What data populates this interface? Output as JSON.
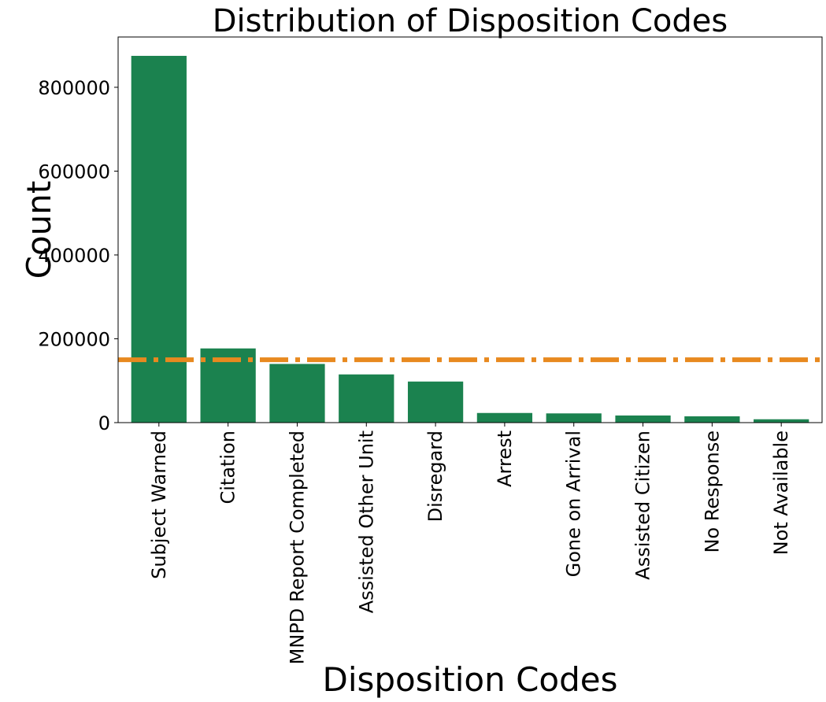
{
  "chart_data": {
    "type": "bar",
    "title": "Distribution of Disposition Codes",
    "xlabel": "Disposition Codes",
    "ylabel": "Count",
    "categories": [
      "Subject Warned",
      "Citation",
      "MNPD Report Completed",
      "Assisted Other Unit",
      "Disregard",
      "Arrest",
      "Gone on Arrival",
      "Assisted Citizen",
      "No Response",
      "Not Available"
    ],
    "values": [
      875000,
      177000,
      140000,
      115000,
      98000,
      23000,
      22000,
      17000,
      15000,
      8000
    ],
    "ylim": [
      0,
      920000
    ],
    "yticks": [
      0,
      200000,
      400000,
      600000,
      800000
    ],
    "reference_line": {
      "value": 150000,
      "style": "dash-dot"
    },
    "grid": false,
    "colors": {
      "bar": "#1b824f",
      "reference_line": "#e8891f"
    }
  }
}
